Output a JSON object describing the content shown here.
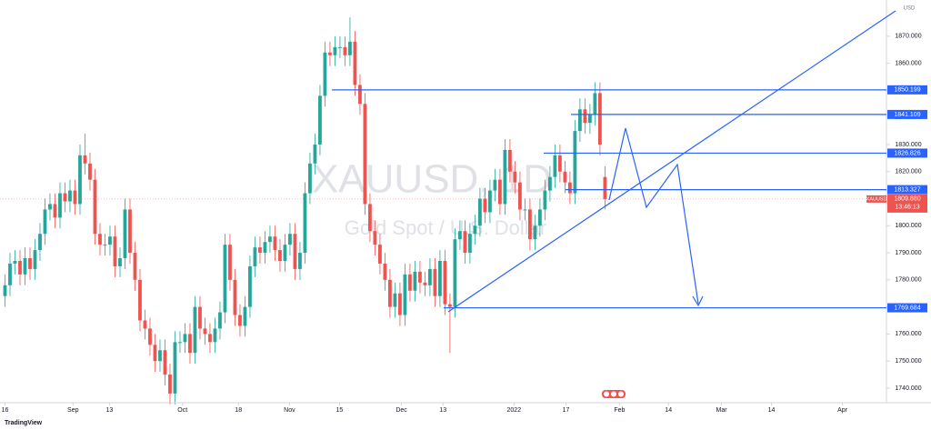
{
  "chart_data": {
    "type": "candlestick",
    "symbol": "XAUUSD",
    "watermark": "XAUUSD, 1D",
    "subtitle": "Gold Spot / U.S. Dollar",
    "currency": "USD",
    "up_color": "#26a69a",
    "down_color": "#ef5350",
    "line_color": "#2962ff",
    "open": [
      1774,
      1778,
      1786,
      1787,
      1782,
      1788,
      1784,
      1791,
      1797,
      1806,
      1808,
      1803,
      1812,
      1809,
      1813,
      1808,
      1826,
      1823,
      1817,
      1797,
      1793,
      1793,
      1796,
      1785,
      1788,
      1806,
      1790,
      1780,
      1765,
      1762,
      1756,
      1750,
      1754,
      1745,
      1738,
      1757,
      1757,
      1760,
      1753,
      1770,
      1762,
      1760,
      1757,
      1762,
      1768,
      1793,
      1780,
      1767,
      1763,
      1770,
      1785,
      1792,
      1790,
      1794,
      1796,
      1791,
      1787,
      1793,
      1797,
      1784,
      1790,
      1812,
      1823,
      1830,
      1848,
      1864,
      1863,
      1866,
      1866,
      1863,
      1868,
      1852,
      1845,
      1808,
      1798,
      1793,
      1786,
      1780,
      1770,
      1775,
      1767,
      1782,
      1776,
      1783,
      1779,
      1778,
      1784,
      1774,
      1787,
      1771,
      1770,
      1795,
      1798,
      1790,
      1797,
      1800,
      1810,
      1805,
      1813,
      1817,
      1808,
      1828,
      1820,
      1816,
      1806,
      1806,
      1795,
      1800,
      1806,
      1813,
      1818,
      1826,
      1820,
      1816,
      1812,
      1835,
      1843,
      1838,
      1841,
      1849,
      1818
    ],
    "high": [
      1782,
      1790,
      1791,
      1791,
      1792,
      1792,
      1795,
      1801,
      1810,
      1812,
      1812,
      1816,
      1816,
      1817,
      1817,
      1830,
      1834,
      1827,
      1821,
      1801,
      1797,
      1800,
      1800,
      1792,
      1810,
      1810,
      1794,
      1784,
      1769,
      1766,
      1760,
      1758,
      1758,
      1749,
      1761,
      1761,
      1764,
      1764,
      1774,
      1774,
      1766,
      1764,
      1766,
      1772,
      1797,
      1797,
      1784,
      1771,
      1774,
      1789,
      1796,
      1796,
      1798,
      1800,
      1800,
      1795,
      1797,
      1801,
      1801,
      1794,
      1816,
      1827,
      1834,
      1852,
      1868,
      1868,
      1870,
      1870,
      1870,
      1877,
      1872,
      1856,
      1849,
      1812,
      1802,
      1797,
      1790,
      1784,
      1779,
      1779,
      1786,
      1786,
      1787,
      1787,
      1783,
      1788,
      1788,
      1791,
      1791,
      1775,
      1799,
      1802,
      1802,
      1801,
      1804,
      1814,
      1814,
      1817,
      1821,
      1821,
      1832,
      1832,
      1824,
      1820,
      1810,
      1810,
      1804,
      1810,
      1817,
      1822,
      1830,
      1830,
      1824,
      1820,
      1839,
      1847,
      1847,
      1845,
      1853,
      1853,
      1822
    ],
    "low": [
      1770,
      1774,
      1782,
      1778,
      1778,
      1780,
      1780,
      1787,
      1793,
      1802,
      1799,
      1799,
      1805,
      1805,
      1804,
      1804,
      1819,
      1813,
      1793,
      1789,
      1789,
      1789,
      1781,
      1781,
      1784,
      1786,
      1776,
      1761,
      1758,
      1752,
      1746,
      1746,
      1741,
      1734,
      1734,
      1753,
      1753,
      1749,
      1749,
      1758,
      1756,
      1753,
      1753,
      1758,
      1764,
      1776,
      1763,
      1759,
      1759,
      1766,
      1781,
      1786,
      1786,
      1790,
      1787,
      1783,
      1783,
      1789,
      1780,
      1780,
      1786,
      1808,
      1819,
      1826,
      1844,
      1859,
      1859,
      1862,
      1859,
      1859,
      1848,
      1841,
      1804,
      1794,
      1789,
      1782,
      1776,
      1766,
      1766,
      1763,
      1763,
      1772,
      1772,
      1775,
      1774,
      1774,
      1770,
      1770,
      1767,
      1753,
      1766,
      1791,
      1786,
      1786,
      1793,
      1796,
      1801,
      1801,
      1809,
      1804,
      1804,
      1816,
      1812,
      1802,
      1802,
      1791,
      1791,
      1796,
      1802,
      1809,
      1814,
      1816,
      1812,
      1808,
      1808,
      1831,
      1834,
      1834,
      1837,
      1826,
      1806
    ],
    "close": [
      1778,
      1786,
      1787,
      1782,
      1788,
      1784,
      1791,
      1797,
      1806,
      1808,
      1803,
      1812,
      1809,
      1813,
      1808,
      1826,
      1823,
      1817,
      1797,
      1793,
      1793,
      1796,
      1785,
      1788,
      1806,
      1790,
      1780,
      1765,
      1762,
      1756,
      1750,
      1754,
      1745,
      1738,
      1757,
      1757,
      1760,
      1753,
      1770,
      1762,
      1760,
      1757,
      1762,
      1768,
      1793,
      1780,
      1767,
      1763,
      1770,
      1785,
      1792,
      1790,
      1794,
      1796,
      1791,
      1787,
      1793,
      1797,
      1784,
      1790,
      1812,
      1823,
      1830,
      1848,
      1864,
      1863,
      1866,
      1866,
      1863,
      1868,
      1852,
      1845,
      1808,
      1798,
      1793,
      1786,
      1780,
      1770,
      1775,
      1767,
      1782,
      1776,
      1783,
      1779,
      1778,
      1784,
      1774,
      1787,
      1771,
      1770,
      1795,
      1798,
      1790,
      1797,
      1800,
      1810,
      1805,
      1813,
      1817,
      1808,
      1828,
      1820,
      1816,
      1806,
      1806,
      1795,
      1800,
      1806,
      1813,
      1818,
      1826,
      1820,
      1816,
      1812,
      1835,
      1843,
      1838,
      1841,
      1849,
      1830,
      1809.88
    ],
    "xlim": [
      -1,
      176.3
    ],
    "xticks": [
      {
        "value": 0,
        "label": "16"
      },
      {
        "value": 13.6,
        "label": "Sep"
      },
      {
        "value": 20.9,
        "label": "13"
      },
      {
        "value": 35.5,
        "label": "Oct"
      },
      {
        "value": 46.7,
        "label": "18"
      },
      {
        "value": 56.9,
        "label": "Nov"
      },
      {
        "value": 66.9,
        "label": "15"
      },
      {
        "value": 79.3,
        "label": "Dec"
      },
      {
        "value": 87.6,
        "label": "13"
      },
      {
        "value": 101.8,
        "label": "2022"
      },
      {
        "value": 112.2,
        "label": "17"
      },
      {
        "value": 122.9,
        "label": "Feb"
      },
      {
        "value": 132.7,
        "label": "14"
      },
      {
        "value": 143.3,
        "label": "Mar"
      },
      {
        "value": 153.3,
        "label": "14"
      },
      {
        "value": 167.5,
        "label": "Apr"
      }
    ],
    "ylim": [
      1734.6,
      1883.4
    ],
    "yticks": [
      {
        "value": 1740,
        "label": "1740.000"
      },
      {
        "value": 1750,
        "label": "1750.000"
      },
      {
        "value": 1760,
        "label": "1760.000"
      },
      {
        "value": 1770,
        "label": "1770.000"
      },
      {
        "value": 1780,
        "label": "1780.000"
      },
      {
        "value": 1790,
        "label": "1790.000"
      },
      {
        "value": 1800,
        "label": "1800.000"
      },
      {
        "value": 1810,
        "label": "1810.000"
      },
      {
        "value": 1820,
        "label": "1820.000"
      },
      {
        "value": 1830,
        "label": "1830.000"
      },
      {
        "value": 1840,
        "label": "1840.000"
      },
      {
        "value": 1850,
        "label": "1850.000"
      },
      {
        "value": 1860,
        "label": "1860.000"
      },
      {
        "value": 1870,
        "label": "1870.000"
      }
    ],
    "levels": [
      1850.199,
      1841.109,
      1826.826,
      1813.327,
      1769.684
    ],
    "last_price": {
      "value": 1809.88,
      "label": "1809.880"
    },
    "countdown": "13:46:13"
  },
  "brand": "TradingView"
}
